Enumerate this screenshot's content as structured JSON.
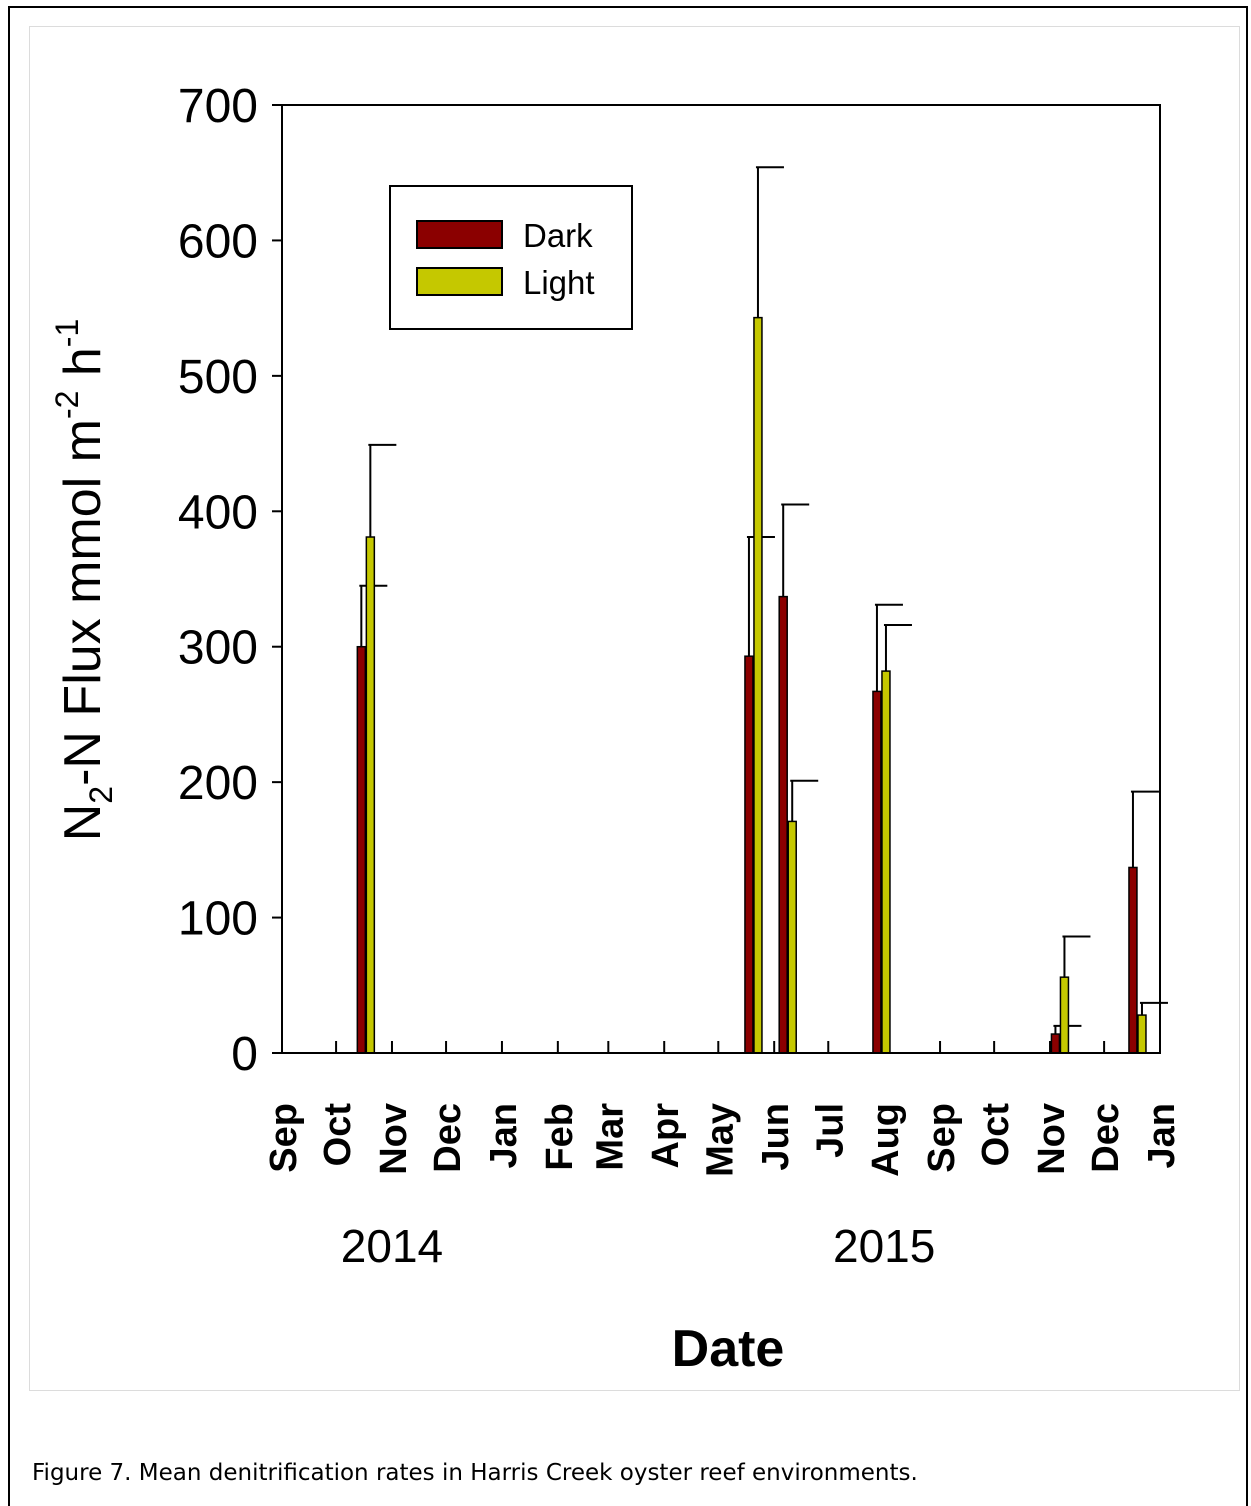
{
  "caption": "Figure 7. Mean denitrification rates in Harris Creek oyster reef environments.",
  "chart_data": {
    "type": "bar",
    "title": "",
    "xlabel": "Date",
    "ylabel_main": "N",
    "ylabel_sub": "2",
    "ylabel_mid": "-N Flux  mmol m",
    "ylabel_sup1": "-2",
    "ylabel_h": " h",
    "ylabel_sup2": "-1",
    "ylim": [
      0,
      700
    ],
    "yticks": [
      0,
      100,
      200,
      300,
      400,
      500,
      600,
      700
    ],
    "xlim": [
      "2014-09-01",
      "2016-01-01"
    ],
    "month_ticks": [
      {
        "label": "Sep",
        "date": "2014-09-01"
      },
      {
        "label": "Oct",
        "date": "2014-10-01"
      },
      {
        "label": "Nov",
        "date": "2014-11-01"
      },
      {
        "label": "Dec",
        "date": "2014-12-01"
      },
      {
        "label": "Jan",
        "date": "2015-01-01"
      },
      {
        "label": "Feb",
        "date": "2015-02-01"
      },
      {
        "label": "Mar",
        "date": "2015-03-01"
      },
      {
        "label": "Apr",
        "date": "2015-04-01"
      },
      {
        "label": "May",
        "date": "2015-05-01"
      },
      {
        "label": "Jun",
        "date": "2015-06-01"
      },
      {
        "label": "Jul",
        "date": "2015-07-01"
      },
      {
        "label": "Aug",
        "date": "2015-08-01"
      },
      {
        "label": "Sep",
        "date": "2015-09-01"
      },
      {
        "label": "Oct",
        "date": "2015-10-01"
      },
      {
        "label": "Nov",
        "date": "2015-11-01"
      },
      {
        "label": "Dec",
        "date": "2015-12-01"
      },
      {
        "label": "Jan",
        "date": "2016-01-01"
      }
    ],
    "year_labels": [
      {
        "label": "2014",
        "date": "2014-11-01"
      },
      {
        "label": "2015",
        "date": "2015-08-01"
      }
    ],
    "legend_position": "top-left",
    "series": [
      {
        "name": "Dark",
        "color": "#8b0000",
        "points": [
          {
            "date": "2014-10-15",
            "value": 300,
            "error": 45
          },
          {
            "date": "2015-05-18",
            "value": 293,
            "error": 88
          },
          {
            "date": "2015-06-06",
            "value": 337,
            "error": 68
          },
          {
            "date": "2015-07-28",
            "value": 267,
            "error": 64
          },
          {
            "date": "2015-11-04",
            "value": 14,
            "error": 6
          },
          {
            "date": "2015-12-17",
            "value": 137,
            "error": 56
          }
        ]
      },
      {
        "name": "Light",
        "color": "#c5c800",
        "points": [
          {
            "date": "2014-10-20",
            "value": 381,
            "error": 68
          },
          {
            "date": "2015-05-23",
            "value": 543,
            "error": 111
          },
          {
            "date": "2015-06-11",
            "value": 171,
            "error": 30
          },
          {
            "date": "2015-08-02",
            "value": 282,
            "error": 34
          },
          {
            "date": "2015-11-09",
            "value": 56,
            "error": 30
          },
          {
            "date": "2015-12-22",
            "value": 28,
            "error": 9
          }
        ]
      }
    ]
  }
}
